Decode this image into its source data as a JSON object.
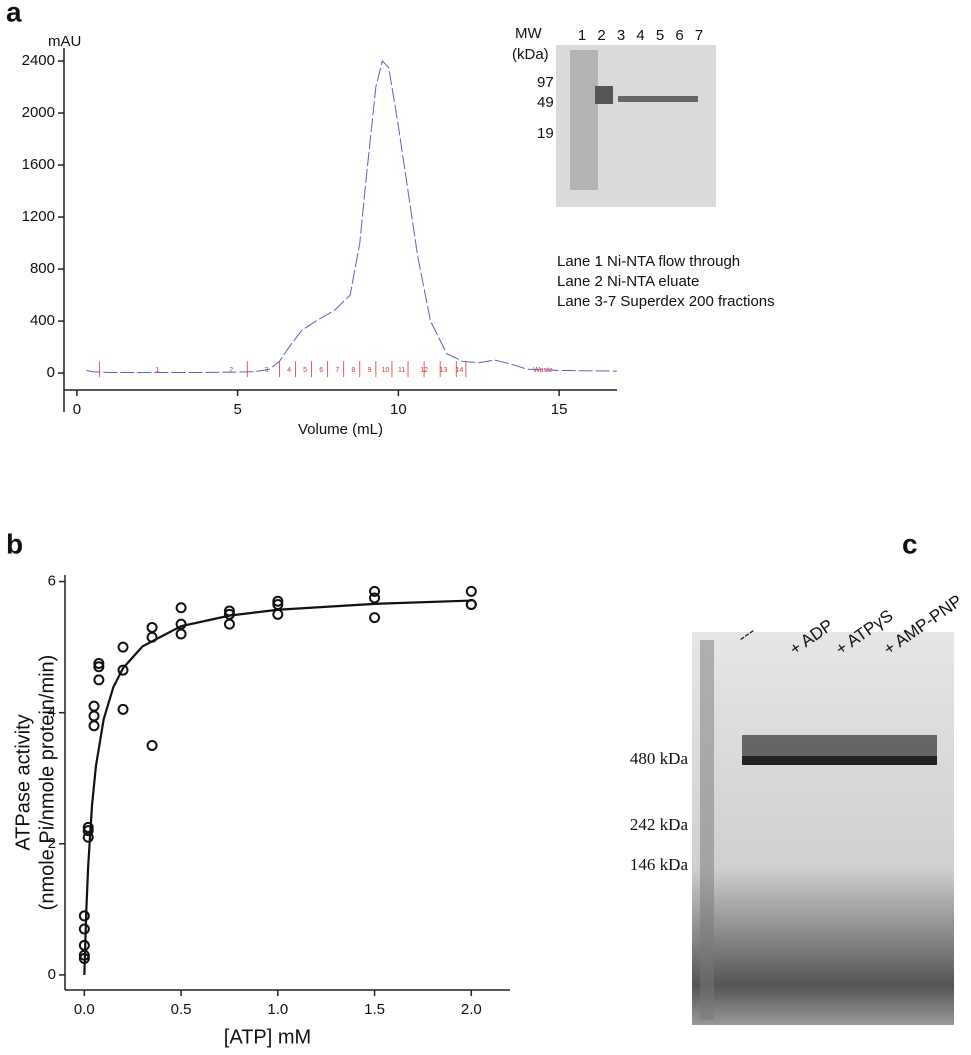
{
  "panel_labels": [
    "a",
    "b",
    "c"
  ],
  "chart_data": [
    {
      "type": "line",
      "y_label": "mAU",
      "x_label": "Volume (mL)",
      "color": "#5566bb",
      "x": [
        0.3,
        0.5,
        1,
        2,
        3,
        4,
        5,
        5.5,
        6,
        6.3,
        6.6,
        7,
        7.5,
        8,
        8.5,
        8.8,
        9,
        9.3,
        9.5,
        9.7,
        10,
        10.3,
        10.6,
        11,
        11.5,
        12,
        12.5,
        13,
        13.5,
        14,
        15,
        16.8
      ],
      "values": [
        20,
        10,
        5,
        5,
        5,
        5,
        8,
        10,
        30,
        90,
        200,
        330,
        410,
        480,
        600,
        1000,
        1500,
        2200,
        2400,
        2350,
        1900,
        1400,
        900,
        400,
        150,
        90,
        80,
        100,
        70,
        30,
        20,
        15
      ],
      "xlim": [
        -0.4,
        16.8
      ],
      "ylim": [
        -130,
        2500
      ],
      "xticks": [
        0,
        5,
        10,
        15
      ],
      "yticks": [
        0,
        400,
        800,
        1200,
        1600,
        2000,
        2400
      ],
      "fraction_color": "#e0303a",
      "fraction_edges": [
        0.7,
        5.3,
        6.3,
        6.8,
        7.3,
        7.8,
        8.3,
        8.8,
        9.3,
        9.8,
        10.3,
        10.8,
        11.3,
        11.8,
        12.1
      ],
      "fraction_centers": [
        2.5,
        4.8,
        5.9,
        6.6,
        7.1,
        7.6,
        8.1,
        8.6,
        9.1,
        9.6,
        10.1,
        10.8,
        11.4,
        11.9,
        14.5
      ],
      "fraction_labels": [
        "1",
        "2",
        "3",
        "4",
        "5",
        "6",
        "7",
        "8",
        "9",
        "10",
        "11",
        "12",
        "13",
        "14",
        "Waste"
      ]
    },
    {
      "type": "scatter",
      "y_label": [
        "ATPase activity",
        "(nmole Pi/nmole protein/min)"
      ],
      "x_label": "[ATP] mM",
      "color": "#111111",
      "x": [
        0,
        0,
        0,
        0,
        0,
        0.02,
        0.02,
        0.02,
        0.05,
        0.05,
        0.05,
        0.075,
        0.075,
        0.075,
        0.2,
        0.2,
        0.2,
        0.35,
        0.35,
        0.35,
        0.5,
        0.5,
        0.5,
        0.75,
        0.75,
        0.75,
        1,
        1,
        1,
        1.5,
        1.5,
        1.5,
        2,
        2,
        2
      ],
      "values": [
        0.25,
        0.3,
        0.45,
        0.7,
        0.9,
        2.1,
        2.2,
        2.25,
        3.8,
        3.95,
        4.1,
        4.5,
        4.7,
        4.75,
        4.05,
        4.65,
        5.0,
        3.5,
        5.15,
        5.3,
        5.2,
        5.35,
        5.6,
        5.35,
        5.5,
        5.55,
        5.5,
        5.65,
        5.7,
        5.45,
        5.75,
        5.85,
        5.65,
        5.65,
        5.85
      ],
      "fit": {
        "x": [
          0,
          0.01,
          0.02,
          0.04,
          0.06,
          0.1,
          0.15,
          0.2,
          0.3,
          0.5,
          0.75,
          1,
          1.5,
          2
        ],
        "values": [
          0,
          0.975,
          1.67,
          2.6,
          3.19,
          3.9,
          4.39,
          4.68,
          5.01,
          5.32,
          5.48,
          5.57,
          5.66,
          5.71
        ]
      },
      "xlim": [
        -0.1,
        2.2
      ],
      "ylim": [
        -0.23,
        6.1
      ],
      "xticks": [
        {
          "value": 0,
          "label": "0.0"
        },
        {
          "value": 0.5,
          "label": "0.5"
        },
        {
          "value": 1,
          "label": "1.0"
        },
        {
          "value": 1.5,
          "label": "1.5"
        },
        {
          "value": 2,
          "label": "2.0"
        }
      ],
      "yticks": [
        0,
        2,
        4,
        6
      ]
    }
  ],
  "inset_gel": {
    "mw_label": [
      "MW",
      "(kDa)"
    ],
    "lanes": [
      "1",
      "2",
      "3",
      "4",
      "5",
      "6",
      "7"
    ],
    "markers": [
      "97",
      "49",
      "19"
    ],
    "legend": [
      "Lane 1 Ni-NTA flow through",
      "Lane 2 Ni-NTA eluate",
      "Lane 3-7 Superdex 200 fractions"
    ]
  },
  "gel_c": {
    "lanes": [
      "---",
      "+ ADP",
      "+ ATPγS",
      "+ AMP-PNP"
    ],
    "markers": [
      "480 kDa",
      "242 kDa",
      "146 kDa"
    ]
  }
}
